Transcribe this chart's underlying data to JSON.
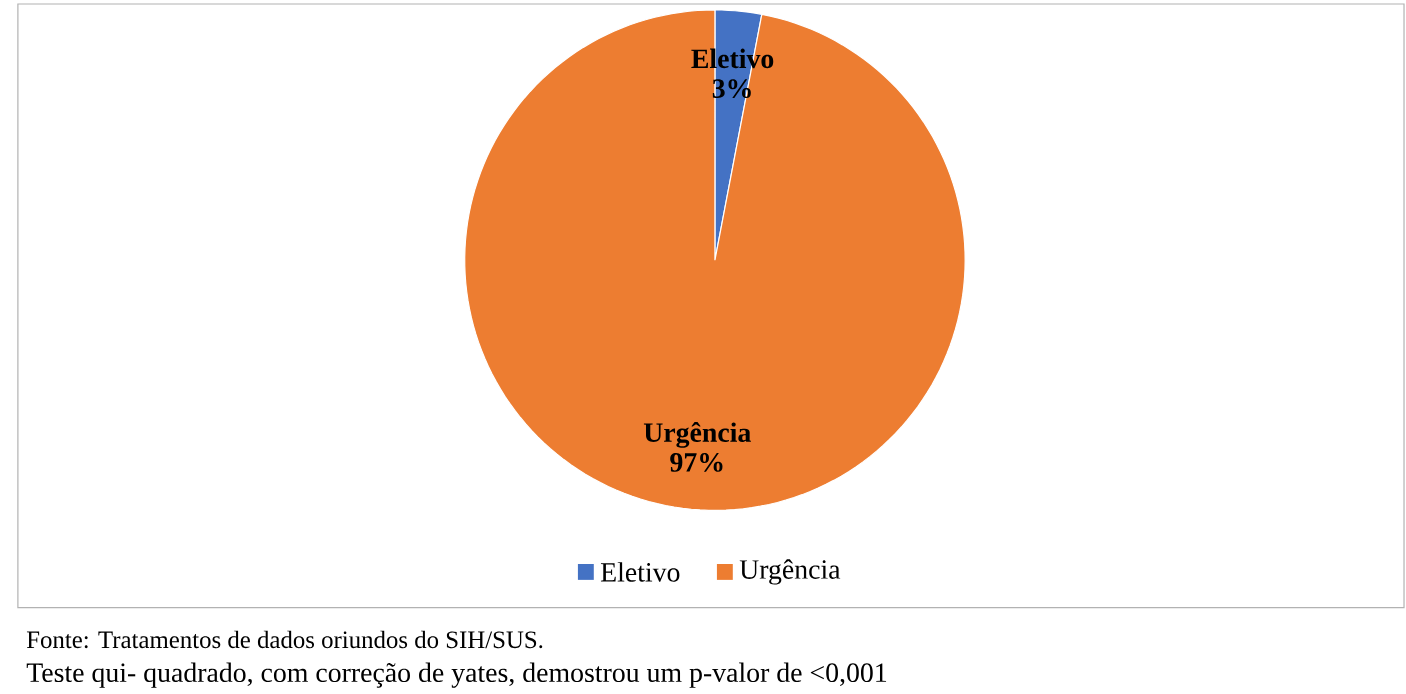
{
  "chart_data": {
    "type": "pie",
    "categories": [
      "Eletivo",
      "Urgência"
    ],
    "values": [
      3,
      97
    ],
    "colors": [
      "#4472c4",
      "#ed7d31"
    ],
    "value_labels": [
      "3%",
      "97%"
    ],
    "legend": "bottom",
    "annotations": [
      "Fonte: Tratamentos de dados oriundos do SIH/SUS.",
      "Teste qui- quadrado, com correção de yates, demostrou um p-valor de <0,001"
    ]
  }
}
